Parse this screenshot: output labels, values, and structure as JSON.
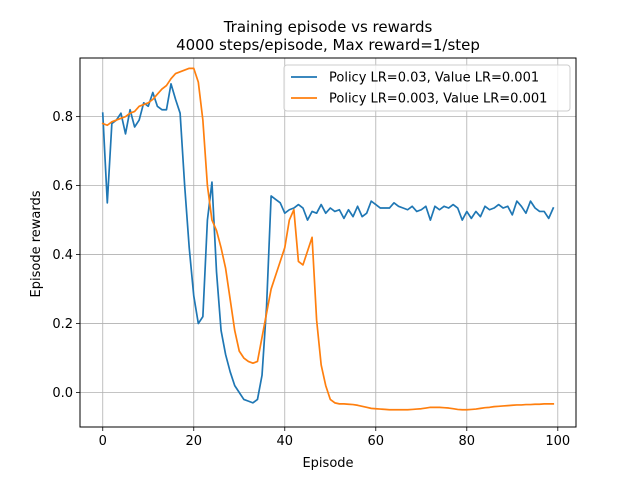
{
  "chart_data": {
    "type": "line",
    "title": "Training episode vs rewards",
    "subtitle": "4000 steps/episode, Max reward=1/step",
    "xlabel": "Episode",
    "ylabel": "Episode rewards",
    "xlim": [
      -5,
      104
    ],
    "ylim": [
      -0.1,
      0.97
    ],
    "xticks": [
      0,
      20,
      40,
      60,
      80,
      100
    ],
    "yticks": [
      0.0,
      0.2,
      0.4,
      0.6,
      0.8
    ],
    "ytick_labels": [
      "0.0",
      "0.2",
      "0.4",
      "0.6",
      "0.8"
    ],
    "grid": true,
    "legend_position": "top-right",
    "x": [
      0,
      1,
      2,
      3,
      4,
      5,
      6,
      7,
      8,
      9,
      10,
      11,
      12,
      13,
      14,
      15,
      16,
      17,
      18,
      19,
      20,
      21,
      22,
      23,
      24,
      25,
      26,
      27,
      28,
      29,
      30,
      31,
      32,
      33,
      34,
      35,
      36,
      37,
      38,
      39,
      40,
      41,
      42,
      43,
      44,
      45,
      46,
      47,
      48,
      49,
      50,
      51,
      52,
      53,
      54,
      55,
      56,
      57,
      58,
      59,
      60,
      61,
      62,
      63,
      64,
      65,
      66,
      67,
      68,
      69,
      70,
      71,
      72,
      73,
      74,
      75,
      76,
      77,
      78,
      79,
      80,
      81,
      82,
      83,
      84,
      85,
      86,
      87,
      88,
      89,
      90,
      91,
      92,
      93,
      94,
      95,
      96,
      97,
      98,
      99
    ],
    "series": [
      {
        "name": "Policy LR=0.03, Value LR=0.001",
        "color": "#1f77b4",
        "values": [
          0.81,
          0.55,
          0.78,
          0.79,
          0.81,
          0.75,
          0.82,
          0.77,
          0.79,
          0.84,
          0.83,
          0.87,
          0.83,
          0.82,
          0.82,
          0.895,
          0.85,
          0.81,
          0.6,
          0.42,
          0.28,
          0.2,
          0.22,
          0.5,
          0.61,
          0.35,
          0.18,
          0.11,
          0.06,
          0.02,
          0.0,
          -0.02,
          -0.025,
          -0.03,
          -0.02,
          0.05,
          0.25,
          0.57,
          0.56,
          0.55,
          0.52,
          0.53,
          0.535,
          0.545,
          0.535,
          0.5,
          0.525,
          0.52,
          0.545,
          0.52,
          0.535,
          0.525,
          0.53,
          0.505,
          0.53,
          0.51,
          0.54,
          0.51,
          0.52,
          0.555,
          0.545,
          0.535,
          0.535,
          0.535,
          0.55,
          0.54,
          0.535,
          0.53,
          0.54,
          0.525,
          0.53,
          0.54,
          0.5,
          0.54,
          0.53,
          0.54,
          0.535,
          0.545,
          0.535,
          0.5,
          0.525,
          0.505,
          0.525,
          0.51,
          0.54,
          0.53,
          0.535,
          0.545,
          0.535,
          0.54,
          0.515,
          0.555,
          0.54,
          0.52,
          0.555,
          0.535,
          0.525,
          0.525,
          0.505,
          0.535
        ]
      },
      {
        "name": "Policy LR=0.003, Value LR=0.001",
        "color": "#ff7f0e",
        "values": [
          0.78,
          0.775,
          0.785,
          0.79,
          0.795,
          0.8,
          0.81,
          0.815,
          0.83,
          0.835,
          0.84,
          0.85,
          0.865,
          0.88,
          0.89,
          0.91,
          0.925,
          0.93,
          0.935,
          0.94,
          0.94,
          0.9,
          0.79,
          0.6,
          0.5,
          0.47,
          0.42,
          0.36,
          0.27,
          0.18,
          0.12,
          0.1,
          0.09,
          0.085,
          0.09,
          0.16,
          0.23,
          0.3,
          0.34,
          0.38,
          0.42,
          0.5,
          0.53,
          0.38,
          0.37,
          0.41,
          0.45,
          0.21,
          0.08,
          0.02,
          -0.02,
          -0.03,
          -0.033,
          -0.033,
          -0.034,
          -0.035,
          -0.037,
          -0.04,
          -0.043,
          -0.046,
          -0.047,
          -0.048,
          -0.049,
          -0.05,
          -0.05,
          -0.05,
          -0.05,
          -0.05,
          -0.049,
          -0.048,
          -0.047,
          -0.045,
          -0.043,
          -0.043,
          -0.043,
          -0.044,
          -0.045,
          -0.047,
          -0.049,
          -0.05,
          -0.05,
          -0.049,
          -0.048,
          -0.046,
          -0.044,
          -0.043,
          -0.041,
          -0.04,
          -0.039,
          -0.038,
          -0.037,
          -0.036,
          -0.036,
          -0.035,
          -0.035,
          -0.034,
          -0.034,
          -0.033,
          -0.033,
          -0.033
        ]
      }
    ]
  }
}
